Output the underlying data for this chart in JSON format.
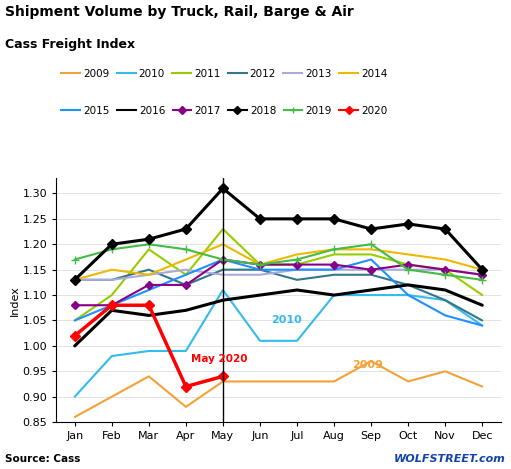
{
  "title_line1": "Shipment Volume by Truck, Rail, Barge & Air",
  "title_line2": "Cass Freight Index",
  "ylabel": "Index",
  "source": "Source: Cass",
  "watermark": "WOLFSTREET.com",
  "months": [
    "Jan",
    "Feb",
    "Mar",
    "Apr",
    "May",
    "Jun",
    "Jul",
    "Aug",
    "Sep",
    "Oct",
    "Nov",
    "Dec"
  ],
  "ylim": [
    0.85,
    1.33
  ],
  "vline_x": 4,
  "series": {
    "2009": {
      "color": "#F4A236",
      "linewidth": 1.5,
      "marker": null,
      "zorder": 2,
      "data": [
        0.86,
        0.9,
        0.94,
        0.88,
        0.93,
        0.93,
        0.93,
        0.93,
        0.97,
        0.93,
        0.95,
        0.92
      ]
    },
    "2010": {
      "color": "#33BBEE",
      "linewidth": 1.5,
      "marker": null,
      "zorder": 2,
      "data": [
        0.9,
        0.98,
        0.99,
        0.99,
        1.11,
        1.01,
        1.01,
        1.1,
        1.1,
        1.1,
        1.09,
        1.04
      ]
    },
    "2011": {
      "color": "#99CC00",
      "linewidth": 1.5,
      "marker": null,
      "zorder": 2,
      "data": [
        1.05,
        1.1,
        1.19,
        1.14,
        1.23,
        1.16,
        1.16,
        1.18,
        1.18,
        1.16,
        1.15,
        1.1
      ]
    },
    "2012": {
      "color": "#337788",
      "linewidth": 1.5,
      "marker": null,
      "zorder": 2,
      "data": [
        1.13,
        1.13,
        1.15,
        1.12,
        1.15,
        1.15,
        1.13,
        1.14,
        1.14,
        1.12,
        1.09,
        1.05
      ]
    },
    "2013": {
      "color": "#AAAADD",
      "linewidth": 1.5,
      "marker": null,
      "zorder": 2,
      "data": [
        1.13,
        1.13,
        1.14,
        1.15,
        1.14,
        1.14,
        1.15,
        1.15,
        1.15,
        1.15,
        1.15,
        1.14
      ]
    },
    "2014": {
      "color": "#EEB800",
      "linewidth": 1.5,
      "marker": null,
      "zorder": 2,
      "data": [
        1.13,
        1.15,
        1.14,
        1.17,
        1.2,
        1.16,
        1.18,
        1.19,
        1.19,
        1.18,
        1.17,
        1.15
      ]
    },
    "2015": {
      "color": "#1E90FF",
      "linewidth": 1.5,
      "marker": null,
      "zorder": 2,
      "data": [
        1.05,
        1.08,
        1.11,
        1.14,
        1.17,
        1.15,
        1.15,
        1.15,
        1.17,
        1.1,
        1.06,
        1.04
      ]
    },
    "2016": {
      "color": "#000000",
      "linewidth": 2.2,
      "marker": null,
      "zorder": 3,
      "data": [
        1.0,
        1.07,
        1.06,
        1.07,
        1.09,
        1.1,
        1.11,
        1.1,
        1.11,
        1.12,
        1.11,
        1.08
      ]
    },
    "2017": {
      "color": "#880088",
      "linewidth": 1.5,
      "marker": "D",
      "markersize": 4,
      "zorder": 2,
      "data": [
        1.08,
        1.08,
        1.12,
        1.12,
        1.17,
        1.16,
        1.16,
        1.16,
        1.15,
        1.16,
        1.15,
        1.14
      ]
    },
    "2018": {
      "color": "#000000",
      "linewidth": 2.2,
      "marker": "D",
      "markersize": 5,
      "zorder": 4,
      "data": [
        1.13,
        1.2,
        1.21,
        1.23,
        1.31,
        1.25,
        1.25,
        1.25,
        1.23,
        1.24,
        1.23,
        1.15
      ]
    },
    "2019": {
      "color": "#44BB44",
      "linewidth": 1.5,
      "marker": "+",
      "markersize": 6,
      "zorder": 2,
      "data": [
        1.17,
        1.19,
        1.2,
        1.19,
        1.17,
        1.16,
        1.17,
        1.19,
        1.2,
        1.15,
        1.14,
        1.13
      ]
    },
    "2020": {
      "color": "#FF0000",
      "linewidth": 2.5,
      "marker": "D",
      "markersize": 5,
      "zorder": 5,
      "data": [
        1.02,
        1.08,
        1.08,
        0.92,
        0.94,
        null,
        null,
        null,
        null,
        null,
        null,
        null
      ]
    }
  },
  "legend_order": [
    "2009",
    "2010",
    "2011",
    "2012",
    "2013",
    "2014",
    "2015",
    "2016",
    "2017",
    "2018",
    "2019",
    "2020"
  ]
}
